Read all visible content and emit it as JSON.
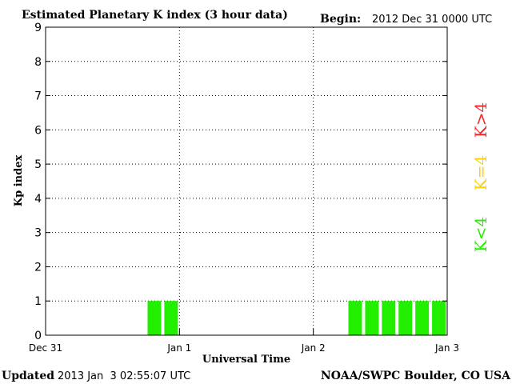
{
  "header": {
    "title": "Estimated Planetary K index (3 hour data)",
    "begin_label": "Begin:",
    "begin_value": "2012 Dec 31 0000 UTC"
  },
  "footer": {
    "updated_label": "Updated",
    "updated_value": "2013 Jan  3 02:55:07 UTC",
    "credit": "NOAA/SWPC Boulder, CO USA"
  },
  "legend": {
    "items": [
      {
        "text": "K>4",
        "color": "#ff2020"
      },
      {
        "text": "K=4",
        "color": "#ffd000"
      },
      {
        "text": "K<4",
        "color": "#22ee00"
      }
    ]
  },
  "colors": {
    "bar": "#22ee00",
    "grid": "#000000",
    "frame": "#000000"
  },
  "chart_data": {
    "type": "bar",
    "title": "Estimated Planetary K index (3 hour data)",
    "xlabel": "Universal Time",
    "ylabel": "Kp index",
    "ylim": [
      0,
      9
    ],
    "xlim": [
      "2012-12-31 00:00",
      "2013-01-03 00:00"
    ],
    "interval_hours": 3,
    "ytick_labels": [
      "0",
      "1",
      "2",
      "3",
      "4",
      "5",
      "6",
      "7",
      "8",
      "9"
    ],
    "xtick_labels": [
      "Dec 31",
      "Jan 1",
      "Jan 2",
      "Jan 3"
    ],
    "grid": true,
    "bars": [
      {
        "start": "2012-12-31 18:00",
        "value": 1
      },
      {
        "start": "2012-12-31 21:00",
        "value": 1
      },
      {
        "start": "2013-01-02 06:00",
        "value": 1
      },
      {
        "start": "2013-01-02 09:00",
        "value": 1
      },
      {
        "start": "2013-01-02 12:00",
        "value": 1
      },
      {
        "start": "2013-01-02 15:00",
        "value": 1
      },
      {
        "start": "2013-01-02 18:00",
        "value": 1
      },
      {
        "start": "2013-01-02 21:00",
        "value": 1
      }
    ]
  }
}
